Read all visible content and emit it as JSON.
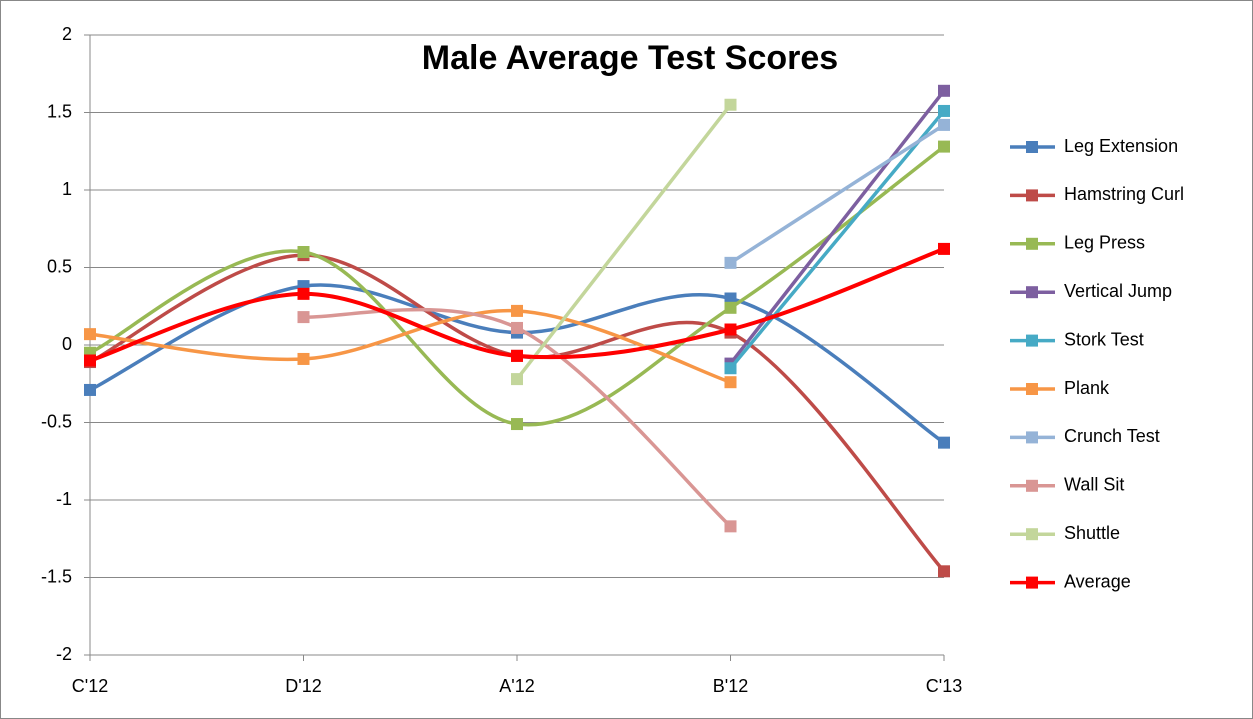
{
  "chart_data": {
    "type": "line",
    "title": "Male Average Test Scores",
    "smooth": true,
    "categories": [
      "C'12",
      "D'12",
      "A'12",
      "B'12",
      "C'13"
    ],
    "ylim": [
      -2,
      2
    ],
    "yticks": [
      -2,
      -1.5,
      -1,
      -0.5,
      0,
      0.5,
      1,
      1.5,
      2
    ],
    "grid": true,
    "legend": "right",
    "series": [
      {
        "name": "Leg Extension",
        "color": "#4a7ebb",
        "values": [
          -0.29,
          0.38,
          0.08,
          0.3,
          -0.63
        ]
      },
      {
        "name": "Hamstring Curl",
        "color": "#be4b48",
        "values": [
          -0.11,
          0.58,
          -0.07,
          0.08,
          -1.46
        ]
      },
      {
        "name": "Leg Press",
        "color": "#98b954",
        "values": [
          -0.05,
          0.6,
          -0.51,
          0.24,
          1.28
        ]
      },
      {
        "name": "Vertical Jump",
        "color": "#7d5fa0",
        "values": [
          null,
          null,
          null,
          -0.12,
          1.64
        ]
      },
      {
        "name": "Stork Test",
        "color": "#46aac5",
        "values": [
          null,
          null,
          null,
          -0.15,
          1.51
        ]
      },
      {
        "name": "Plank",
        "color": "#f79646",
        "values": [
          0.07,
          -0.09,
          0.22,
          -0.24,
          null
        ]
      },
      {
        "name": "Crunch Test",
        "color": "#95b3d7",
        "values": [
          null,
          null,
          null,
          0.53,
          1.42
        ]
      },
      {
        "name": "Wall Sit",
        "color": "#d99694",
        "values": [
          null,
          0.18,
          0.11,
          -1.17,
          null
        ]
      },
      {
        "name": "Shuttle",
        "color": "#c3d69b",
        "values": [
          null,
          null,
          -0.22,
          1.55,
          null
        ]
      },
      {
        "name": "Average",
        "color": "#ff0000",
        "values": [
          -0.1,
          0.33,
          -0.07,
          0.1,
          0.62
        ]
      }
    ]
  }
}
